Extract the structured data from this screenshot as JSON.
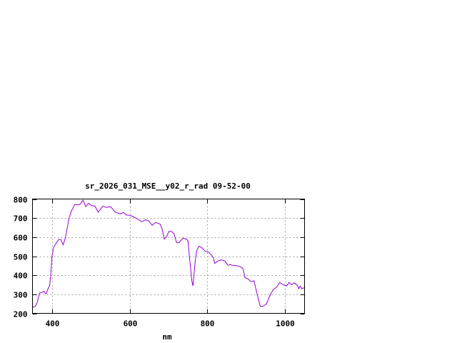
{
  "chart_data": {
    "type": "line",
    "title": "sr_2026_031_MSE__y02_r_rad 09-52-00",
    "xlabel": "nm",
    "ylabel": "",
    "xlim": [
      350,
      1050
    ],
    "ylim": [
      200,
      800
    ],
    "xticks": [
      400,
      600,
      800,
      1000
    ],
    "yticks": [
      200,
      300,
      400,
      500,
      600,
      700,
      800
    ],
    "grid": true,
    "line_color": "#9400d3",
    "series": [
      {
        "x": [
          350,
          357,
          362,
          368,
          377,
          380,
          383,
          386,
          389,
          394,
          397,
          400,
          404,
          411,
          417,
          423,
          429,
          435,
          444,
          450,
          459,
          466,
          472,
          480,
          487,
          494,
          502,
          511,
          519,
          531,
          541,
          551,
          563,
          576,
          584,
          591,
          600,
          606,
          619,
          631,
          641,
          649,
          658,
          667,
          678,
          683,
          689,
          695,
          701,
          708,
          714,
          721,
          727,
          737,
          746,
          750,
          755,
          760,
          763,
          768,
          772,
          778,
          786,
          794,
          802,
          808,
          815,
          819,
          827,
          836,
          845,
          853,
          859,
          867,
          876,
          885,
          891,
          897,
          904,
          913,
          920,
          928,
          936,
          943,
          952,
          961,
          970,
          977,
          986,
          995,
          1004,
          1010,
          1017,
          1023,
          1032,
          1035,
          1039,
          1043,
          1049
        ],
        "y": [
          231,
          237,
          256,
          306,
          312,
          316,
          304,
          304,
          325,
          344,
          400,
          494,
          544,
          569,
          587,
          587,
          560,
          600,
          700,
          737,
          771,
          769,
          772,
          794,
          760,
          777,
          766,
          762,
          731,
          762,
          756,
          760,
          731,
          722,
          729,
          716,
          715,
          710,
          697,
          681,
          691,
          685,
          662,
          677,
          669,
          647,
          590,
          602,
          630,
          629,
          619,
          571,
          571,
          594,
          590,
          581,
          475,
          369,
          344,
          462,
          525,
          552,
          544,
          527,
          522,
          512,
          494,
          462,
          475,
          481,
          475,
          452,
          456,
          450,
          450,
          444,
          437,
          387,
          381,
          366,
          371,
          300,
          237,
          237,
          250,
          294,
          327,
          335,
          362,
          350,
          344,
          362,
          350,
          360,
          347,
          329,
          344,
          329,
          335
        ]
      }
    ]
  }
}
